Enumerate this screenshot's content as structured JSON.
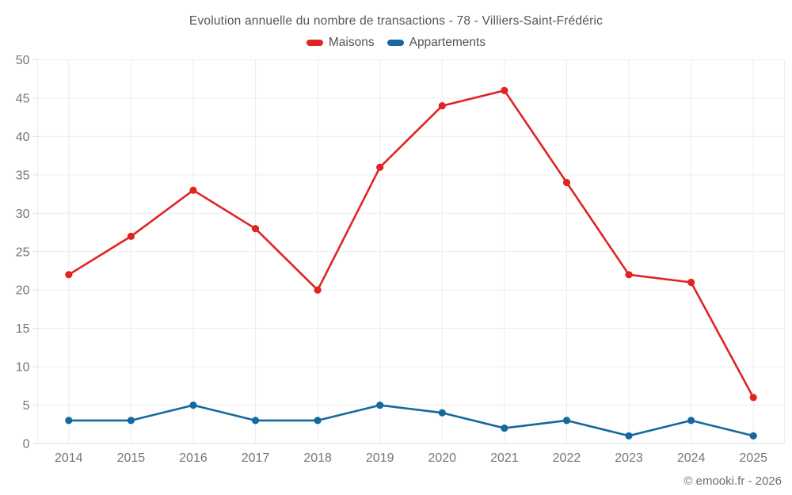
{
  "title": "Evolution annuelle du nombre de transactions - 78 - Villiers-Saint-Frédéric",
  "footer": "© emooki.fr - 2026",
  "colors": {
    "maisons": "#e02424",
    "appartements": "#15699e",
    "grid": "#ececec",
    "axis_line": "#dcdcdc",
    "axis_text": "#757575",
    "title_text": "#555555"
  },
  "chart_data": {
    "type": "line",
    "categories": [
      "2014",
      "2015",
      "2016",
      "2017",
      "2018",
      "2019",
      "2020",
      "2021",
      "2022",
      "2023",
      "2024",
      "2025"
    ],
    "series": [
      {
        "name": "Maisons",
        "color": "#e02424",
        "values": [
          22,
          27,
          33,
          28,
          20,
          36,
          44,
          46,
          34,
          22,
          21,
          6
        ]
      },
      {
        "name": "Appartements",
        "color": "#15699e",
        "values": [
          3,
          3,
          5,
          3,
          3,
          5,
          4,
          2,
          3,
          1,
          3,
          1
        ]
      }
    ],
    "title": "Evolution annuelle du nombre de transactions - 78 - Villiers-Saint-Frédéric",
    "xlabel": "",
    "ylabel": "",
    "ylim": [
      0,
      50
    ],
    "ytick_step": 5,
    "grid": true,
    "legend_position": "top"
  }
}
